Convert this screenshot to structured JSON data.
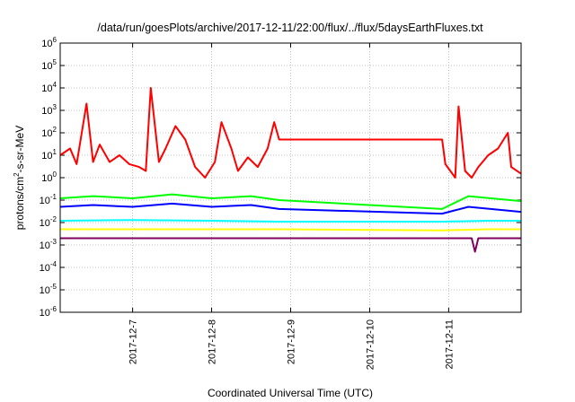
{
  "chart_data": {
    "type": "line",
    "title": "/data/run/goesPlots/archive/2017-12-11/22:00/flux/../flux/5daysEarthFluxes.txt",
    "xlabel": "Coordinated Universal Time (UTC)",
    "ylabel": {
      "prefix": "protons/cm",
      "sup": "2",
      "suffix": "-s-sr-MeV"
    },
    "y_scale": "log",
    "ylim": [
      1e-06,
      1000000.0
    ],
    "x_range_days": [
      "2017-12-06T02:00",
      "2017-12-11T22:00"
    ],
    "grid": true,
    "legend": "none",
    "x_ticks": [
      {
        "day": "2017-12-07",
        "label": "2017-12-7"
      },
      {
        "day": "2017-12-08",
        "label": "2017-12-8"
      },
      {
        "day": "2017-12-09",
        "label": "2017-12-9"
      },
      {
        "day": "2017-12-10",
        "label": "2017-12-10"
      },
      {
        "day": "2017-12-11",
        "label": "2017-12-11"
      }
    ],
    "y_ticks": [
      {
        "exp": -6
      },
      {
        "exp": -5
      },
      {
        "exp": -4
      },
      {
        "exp": -3
      },
      {
        "exp": -2
      },
      {
        "exp": -1
      },
      {
        "exp": 0
      },
      {
        "exp": 1
      },
      {
        "exp": 2
      },
      {
        "exp": 3
      },
      {
        "exp": 4
      },
      {
        "exp": 5
      },
      {
        "exp": 6
      }
    ],
    "tick_base": "10",
    "series": [
      {
        "color": "#ff0000",
        "x": [
          "2017-12-06T02:00",
          "2017-12-06T05:00",
          "2017-12-06T07:00",
          "2017-12-06T10:00",
          "2017-12-06T12:00",
          "2017-12-06T14:00",
          "2017-12-06T17:00",
          "2017-12-06T20:00",
          "2017-12-06T23:00",
          "2017-12-07T02:00",
          "2017-12-07T04:00",
          "2017-12-07T05:30",
          "2017-12-07T08:00",
          "2017-12-07T10:00",
          "2017-12-07T13:00",
          "2017-12-07T16:00",
          "2017-12-07T19:00",
          "2017-12-07T22:00",
          "2017-12-08T01:00",
          "2017-12-08T03:00",
          "2017-12-08T06:00",
          "2017-12-08T08:00",
          "2017-12-08T11:00",
          "2017-12-08T14:00",
          "2017-12-08T17:00",
          "2017-12-08T19:00",
          "2017-12-08T20:30",
          "2017-12-09T00:00",
          "2017-12-10T22:00",
          "2017-12-10T23:00",
          "2017-12-11T02:00",
          "2017-12-11T03:00",
          "2017-12-11T05:00",
          "2017-12-11T07:00",
          "2017-12-11T09:00",
          "2017-12-11T12:00",
          "2017-12-11T15:00",
          "2017-12-11T18:00",
          "2017-12-11T19:00",
          "2017-12-11T22:00"
        ],
        "y": [
          10,
          20,
          4,
          2000,
          5,
          30,
          5,
          10,
          4,
          3,
          2,
          10000,
          5,
          20,
          200,
          50,
          3,
          1,
          5,
          300,
          20,
          2,
          8,
          3,
          20,
          300,
          50,
          50,
          50,
          4,
          1,
          1500,
          2,
          1,
          3,
          10,
          20,
          100,
          3,
          1.5
        ]
      },
      {
        "color": "#00ff00",
        "x": [
          "2017-12-06T02:00",
          "2017-12-06T12:00",
          "2017-12-07T00:00",
          "2017-12-07T12:00",
          "2017-12-08T00:00",
          "2017-12-08T12:00",
          "2017-12-08T20:30",
          "2017-12-10T22:00",
          "2017-12-11T06:00",
          "2017-12-11T22:00"
        ],
        "y": [
          0.12,
          0.15,
          0.12,
          0.18,
          0.12,
          0.15,
          0.1,
          0.04,
          0.15,
          0.09
        ]
      },
      {
        "color": "#0000ff",
        "x": [
          "2017-12-06T02:00",
          "2017-12-06T12:00",
          "2017-12-07T00:00",
          "2017-12-07T12:00",
          "2017-12-08T00:00",
          "2017-12-08T12:00",
          "2017-12-08T20:30",
          "2017-12-10T22:00",
          "2017-12-11T06:00",
          "2017-12-11T22:00"
        ],
        "y": [
          0.05,
          0.06,
          0.05,
          0.07,
          0.05,
          0.06,
          0.04,
          0.025,
          0.05,
          0.03
        ]
      },
      {
        "color": "#00ffff",
        "x": [
          "2017-12-06T02:00",
          "2017-12-07T00:00",
          "2017-12-08T00:00",
          "2017-12-08T20:30",
          "2017-12-10T22:00",
          "2017-12-11T12:00",
          "2017-12-11T22:00"
        ],
        "y": [
          0.012,
          0.013,
          0.012,
          0.011,
          0.011,
          0.012,
          0.012
        ]
      },
      {
        "color": "#ffff00",
        "x": [
          "2017-12-06T02:00",
          "2017-12-07T00:00",
          "2017-12-08T00:00",
          "2017-12-08T20:30",
          "2017-12-10T22:00",
          "2017-12-11T12:00",
          "2017-12-11T22:00"
        ],
        "y": [
          0.005,
          0.005,
          0.005,
          0.005,
          0.0045,
          0.005,
          0.005
        ]
      },
      {
        "color": "#800060",
        "x": [
          "2017-12-06T02:00",
          "2017-12-07T00:00",
          "2017-12-08T00:00",
          "2017-12-08T20:30",
          "2017-12-10T22:00",
          "2017-12-11T07:00",
          "2017-12-11T08:00",
          "2017-12-11T09:00",
          "2017-12-11T22:00"
        ],
        "y": [
          0.002,
          0.002,
          0.002,
          0.002,
          0.002,
          0.002,
          0.0005,
          0.002,
          0.002
        ]
      }
    ]
  }
}
